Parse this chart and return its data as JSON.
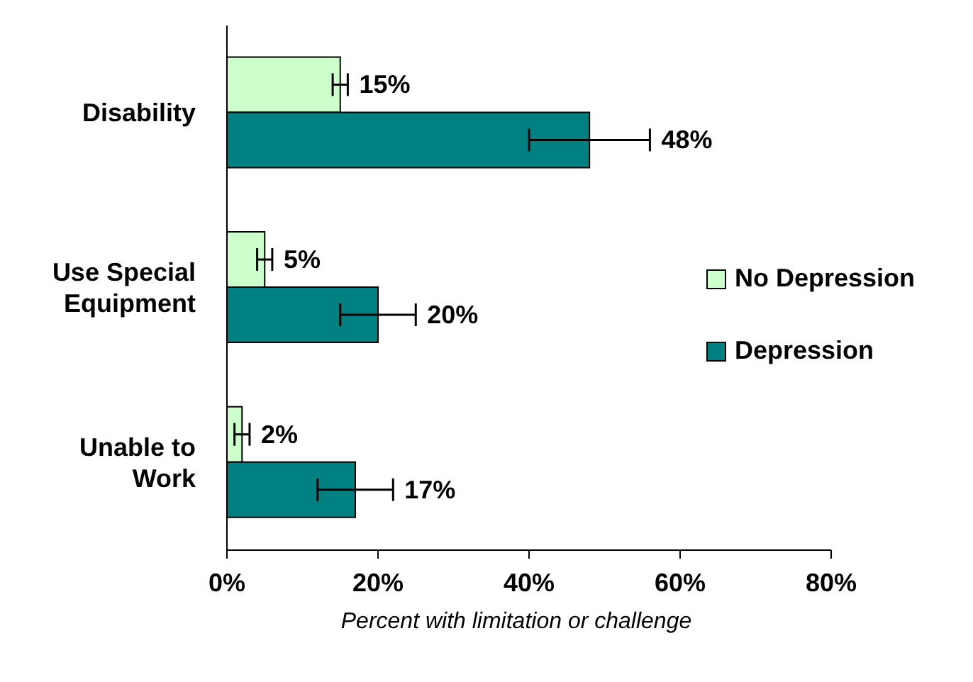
{
  "chart_data": {
    "type": "bar",
    "orientation": "horizontal",
    "categories": [
      "Disability",
      "Use Special Equipment",
      "Unable to Work"
    ],
    "series": [
      {
        "name": "No Depression",
        "color": "#ccffcc",
        "values": [
          15,
          5,
          2
        ],
        "errors": [
          1,
          1,
          1
        ],
        "value_labels": [
          "15%",
          "5%",
          "2%"
        ]
      },
      {
        "name": "Depression",
        "color": "#008080",
        "values": [
          48,
          20,
          17
        ],
        "errors": [
          8,
          5,
          5
        ],
        "value_labels": [
          "48%",
          "20%",
          "17%"
        ]
      }
    ],
    "xlim": [
      0,
      80
    ],
    "xticks": [
      {
        "value": 0,
        "label": "0%"
      },
      {
        "value": 20,
        "label": "20%"
      },
      {
        "value": 40,
        "label": "40%"
      },
      {
        "value": 60,
        "label": "60%"
      },
      {
        "value": 80,
        "label": "80%"
      }
    ],
    "xlabel": "Percent with limitation or challenge",
    "grid": false,
    "legend": "right"
  }
}
